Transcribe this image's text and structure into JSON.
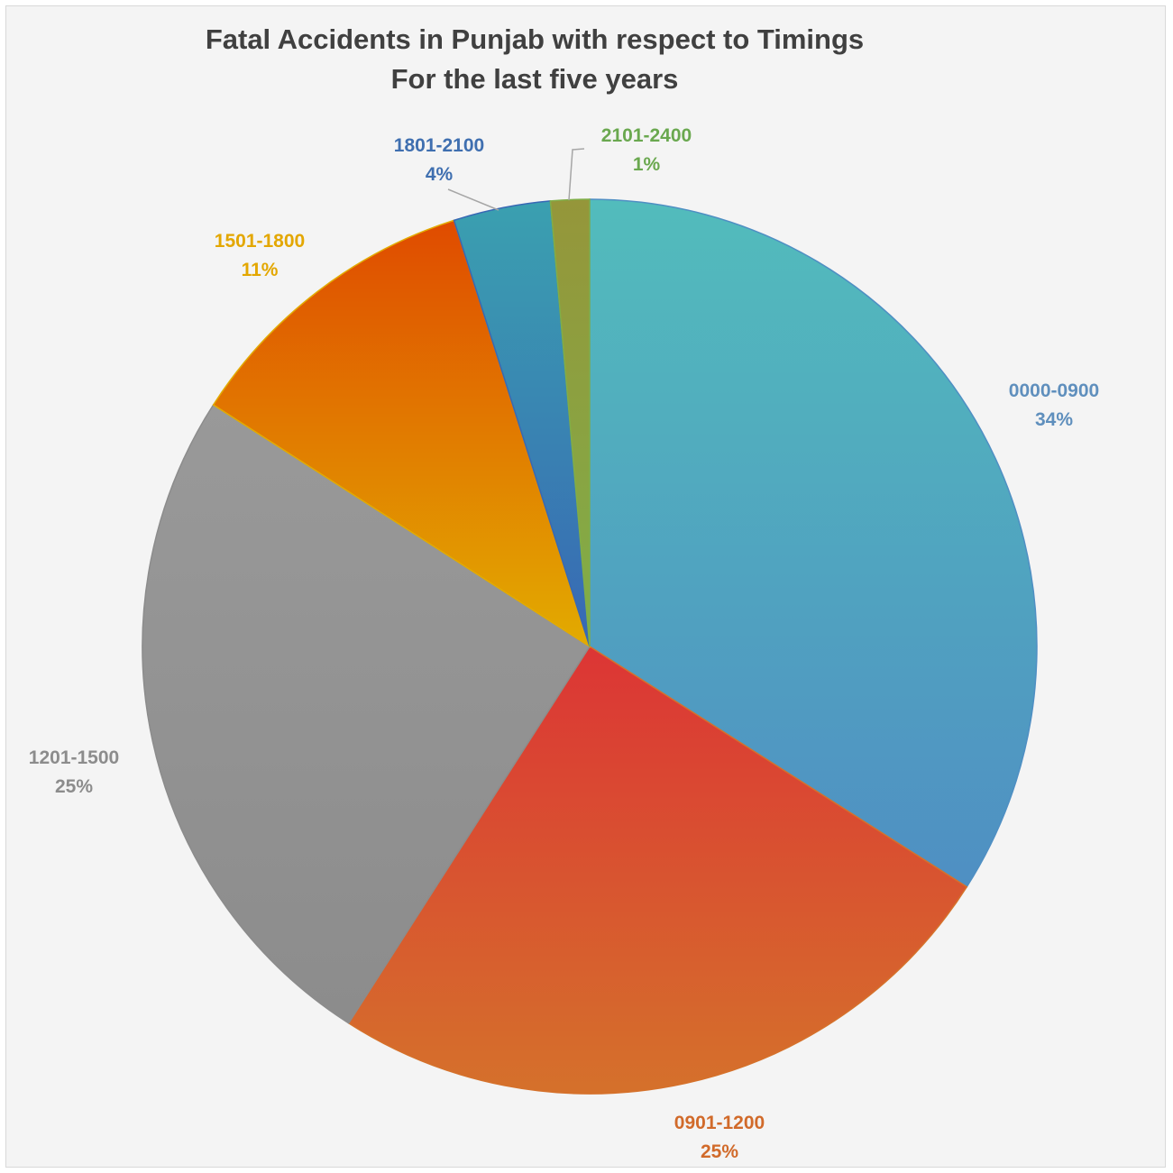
{
  "chart_data": {
    "type": "pie",
    "title": "Fatal Accidents in Punjab with respect to Timings",
    "subtitle": "For the last five years",
    "unit": "%",
    "slices": [
      {
        "label": "0000-0900",
        "value": 34,
        "value_text": "34%",
        "color_top": "#52bcbc",
        "color_bottom": "#4f8fc3",
        "label_color": "#5f8fbd"
      },
      {
        "label": "0901-1200",
        "value": 25,
        "value_text": "25%",
        "color_top": "#dc3535",
        "color_bottom": "#d5712b",
        "label_color": "#d16a2a"
      },
      {
        "label": "1201-1500",
        "value": 25,
        "value_text": "25%",
        "color_top": "#999999",
        "color_bottom": "#8c8c8c",
        "label_color": "#8c8c8c"
      },
      {
        "label": "1501-1800",
        "value": 11,
        "value_text": "11%",
        "color_top": "#e04b00",
        "color_bottom": "#e2ab00",
        "label_color": "#e3a700"
      },
      {
        "label": "1801-2100",
        "value": 3.5,
        "value_text": "4%",
        "color_top": "#3aa0b0",
        "color_bottom": "#3868b4",
        "label_color": "#3f6fb0"
      },
      {
        "label": "2101-2400",
        "value": 1.4,
        "value_text": "1%",
        "color_top": "#95963a",
        "color_bottom": "#80ae48",
        "label_color": "#6aa84f"
      }
    ]
  }
}
